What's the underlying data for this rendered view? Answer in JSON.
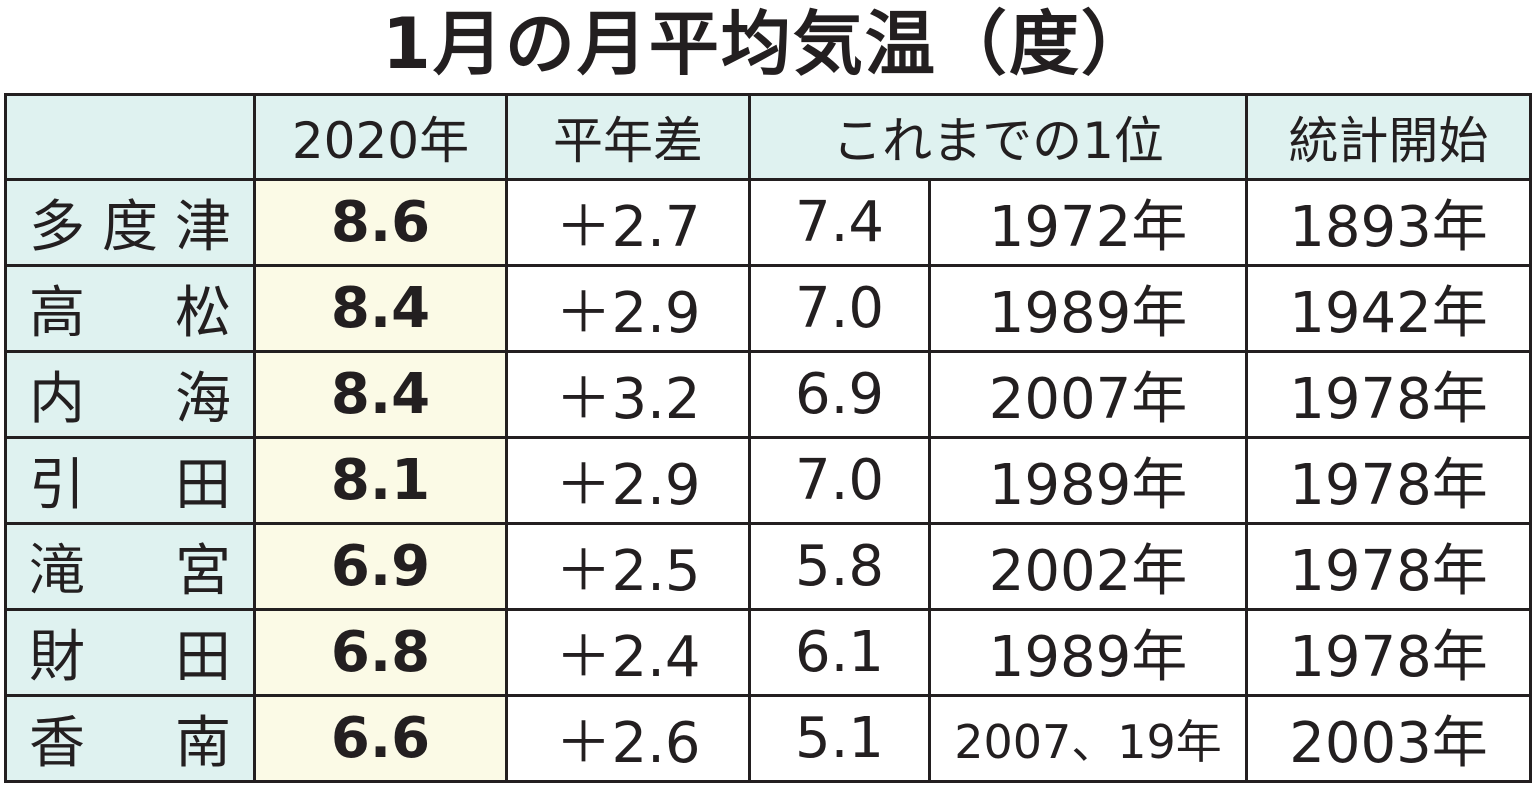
{
  "title": "1月の月平均気温（度）",
  "table": {
    "header": [
      "2020年",
      "平年差",
      "これまでの1位",
      "統計開始"
    ],
    "rows": [
      [
        "多度津",
        "8.6",
        "＋2.7",
        "7.4",
        "1972年",
        "1893年"
      ],
      [
        "高松",
        "8.4",
        "＋2.9",
        "7.0",
        "1989年",
        "1942年"
      ],
      [
        "内海",
        "8.4",
        "＋3.2",
        "6.9",
        "2007年",
        "1978年"
      ],
      [
        "引田",
        "8.1",
        "＋2.9",
        "7.0",
        "1989年",
        "1978年"
      ],
      [
        "滝宮",
        "6.9",
        "＋2.5",
        "5.8",
        "2002年",
        "1978年"
      ],
      [
        "財田",
        "6.8",
        "＋2.4",
        "6.1",
        "1989年",
        "1978年"
      ],
      [
        "香南",
        "6.6",
        "＋2.6",
        "5.1",
        "2007、19年",
        "2003年"
      ]
    ]
  }
}
